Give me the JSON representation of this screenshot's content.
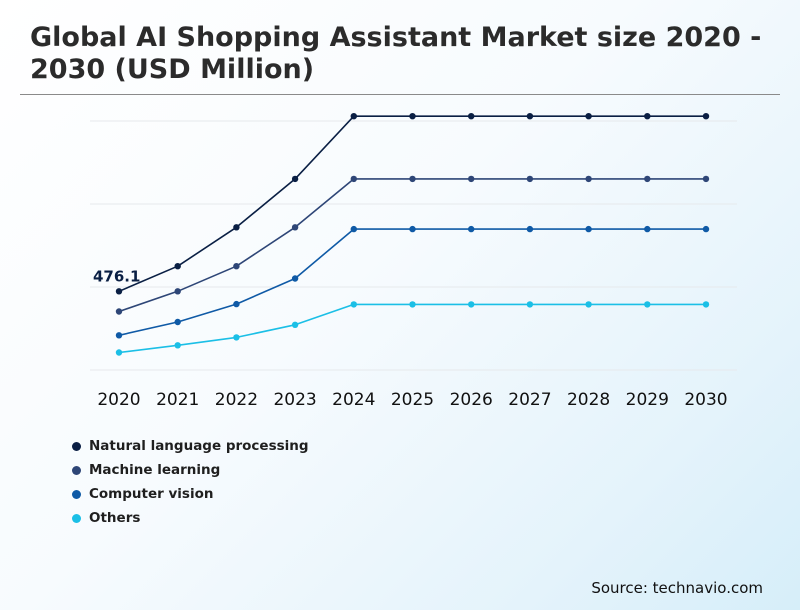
{
  "title": "Global AI Shopping Assistant Market size 2020 - 2030 (USD Million)",
  "source": "Source: technavio.com",
  "chart_data": {
    "type": "line",
    "title": "Global AI Shopping Assistant Market size 2020 - 2030 (USD Million)",
    "x": [
      "2020",
      "2021",
      "2022",
      "2023",
      "2024",
      "2025",
      "2026",
      "2027",
      "2028",
      "2029",
      "2030"
    ],
    "series": [
      {
        "name": "Natural language processing",
        "color": "#0a1f44",
        "values": [
          476.1,
          574,
          726,
          915,
          1160,
          1160,
          1160,
          1160,
          1160,
          1160,
          1160
        ]
      },
      {
        "name": "Machine learning",
        "color": "#2e4677",
        "values": [
          397,
          476,
          574,
          726,
          915,
          915,
          915,
          915,
          915,
          915,
          915
        ]
      },
      {
        "name": "Computer vision",
        "color": "#0f5aa6",
        "values": [
          304,
          356,
          426,
          526,
          719,
          719,
          719,
          719,
          719,
          719,
          719
        ]
      },
      {
        "name": "Others",
        "color": "#1bbfe6",
        "values": [
          237,
          265,
          296,
          345,
          425,
          425,
          425,
          425,
          425,
          425,
          425
        ]
      }
    ],
    "annotations": [
      {
        "series": 0,
        "index": 0,
        "text": "476.1"
      }
    ],
    "y_range": [
      110,
      1200
    ],
    "grid": true,
    "legend_position": "bottom-left"
  }
}
